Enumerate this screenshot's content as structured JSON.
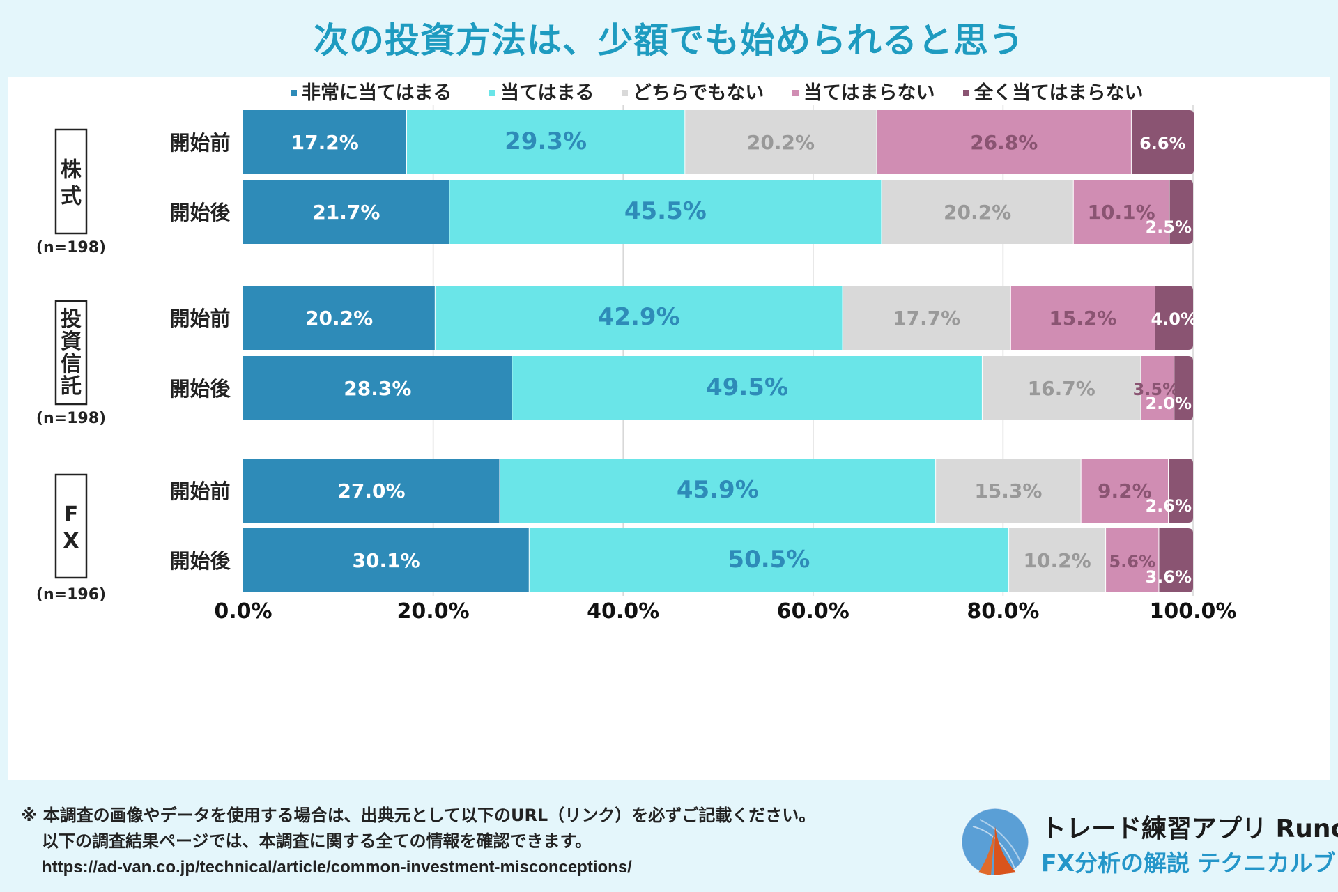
{
  "title": "次の投資方法は、少額でも始められると思う",
  "chart_data": {
    "type": "bar",
    "orientation": "horizontal",
    "stacked": true,
    "title": "次の投資方法は、少額でも始められると思う",
    "legend_position": "top",
    "legend": [
      {
        "name": "非常に当てはまる",
        "color": "#2e8bb8"
      },
      {
        "name": "当てはまる",
        "color": "#6ae5e8"
      },
      {
        "name": "どちらでもない",
        "color": "#d9d9d9"
      },
      {
        "name": "当てはまらない",
        "color": "#d08db3"
      },
      {
        "name": "全く当てはまらない",
        "color": "#8a5472"
      }
    ],
    "groups": [
      {
        "name": "株式",
        "n": "(n=198)",
        "rows": [
          {
            "label": "開始前",
            "values": [
              17.2,
              29.3,
              20.2,
              26.8,
              6.6
            ],
            "value_labels": [
              "17.2%",
              "29.3%",
              "20.2%",
              "26.8%",
              "6.6%"
            ]
          },
          {
            "label": "開始後",
            "values": [
              21.7,
              45.5,
              20.2,
              10.1,
              2.5
            ],
            "value_labels": [
              "21.7%",
              "45.5%",
              "20.2%",
              "10.1%",
              "2.5%"
            ]
          }
        ]
      },
      {
        "name": "投資信託",
        "n": "(n=198)",
        "rows": [
          {
            "label": "開始前",
            "values": [
              20.2,
              42.9,
              17.7,
              15.2,
              4.0
            ],
            "value_labels": [
              "20.2%",
              "42.9%",
              "17.7%",
              "15.2%",
              "4.0%"
            ]
          },
          {
            "label": "開始後",
            "values": [
              28.3,
              49.5,
              16.7,
              3.5,
              2.0
            ],
            "value_labels": [
              "28.3%",
              "49.5%",
              "16.7%",
              "3.5%",
              "2.0%"
            ]
          }
        ]
      },
      {
        "name": "FX",
        "n": "(n=196)",
        "rows": [
          {
            "label": "開始前",
            "values": [
              27.0,
              45.9,
              15.3,
              9.2,
              2.6
            ],
            "value_labels": [
              "27.0%",
              "45.9%",
              "15.3%",
              "9.2%",
              "2.6%"
            ]
          },
          {
            "label": "開始後",
            "values": [
              30.1,
              50.5,
              10.2,
              5.6,
              3.6
            ],
            "value_labels": [
              "30.1%",
              "50.5%",
              "10.2%",
              "5.6%",
              "3.6%"
            ]
          }
        ]
      }
    ],
    "xlim": [
      0,
      100
    ],
    "xticks": [
      "0.0%",
      "20.0%",
      "40.0%",
      "60.0%",
      "80.0%",
      "100.0%"
    ],
    "grid": true,
    "label_colors": [
      "#ffffff",
      "#2e8bb8",
      "#999999",
      "#8a5472",
      "#ffffff"
    ]
  },
  "footer": {
    "line1": "※ 本調査の画像やデータを使用する場合は、出典元として以下のURL（リンク）を必ずご記載ください。",
    "line2": "以下の調査結果ページでは、本調査に関する全ての情報を確認できます。",
    "url": "https://ad-van.co.jp/technical/article/common-investment-misconceptions/"
  },
  "brand": {
    "line1": "トレード練習アプリ Runcha",
    "line2": "FX分析の解説 テクニカルブック",
    "logo_icon": "flame-globe-icon"
  }
}
